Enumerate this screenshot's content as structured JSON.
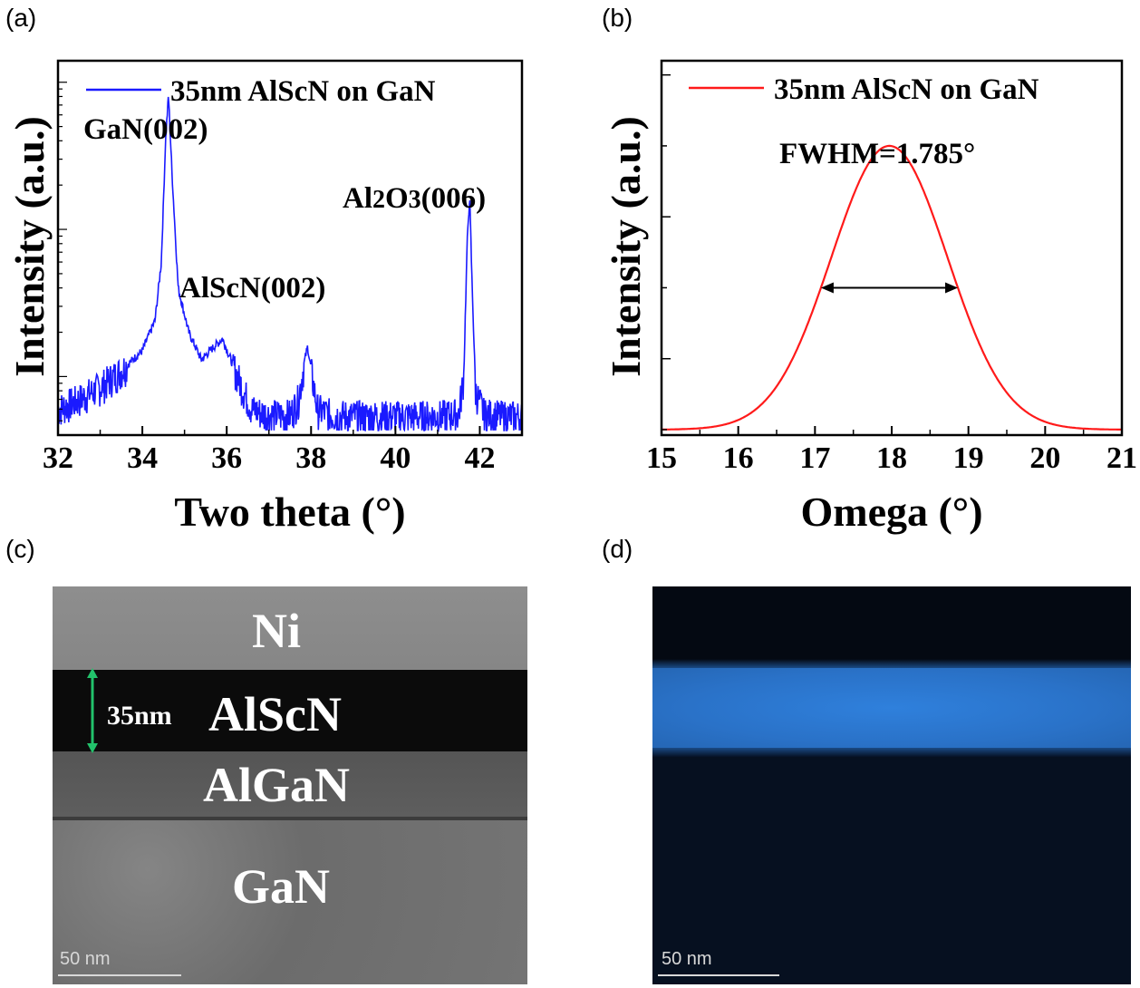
{
  "panels": {
    "a": "(a)",
    "b": "(b)",
    "c": "(c)",
    "d": "(d)"
  },
  "chart_data": [
    {
      "type": "line",
      "title": "",
      "xlabel": "Two theta (°)",
      "ylabel": "Intensity (a.u.)",
      "xlim": [
        32,
        43
      ],
      "xticks": [
        32,
        34,
        36,
        38,
        40,
        42
      ],
      "log_y": true,
      "legend": {
        "entry": "35nm AlScN on GaN",
        "placement": "top",
        "color": "#1a1aff"
      },
      "series": [
        {
          "name": "35nm AlScN on GaN",
          "color": "#1a1aff",
          "x": [
            32.0,
            32.5,
            33.0,
            33.5,
            34.0,
            34.3,
            34.45,
            34.55,
            34.62,
            34.7,
            34.85,
            35.1,
            35.4,
            35.7,
            35.9,
            36.1,
            36.4,
            36.6,
            37.0,
            37.5,
            37.7,
            37.85,
            37.92,
            38.0,
            38.15,
            38.5,
            39.0,
            40.0,
            41.0,
            41.5,
            41.62,
            41.7,
            41.76,
            41.82,
            41.9,
            42.1,
            42.5,
            43.0
          ],
          "y": [
            6,
            7,
            8.5,
            11,
            15,
            24,
            60,
            400,
            820,
            250,
            40,
            20,
            13,
            16,
            18,
            13,
            8,
            6,
            5.5,
            5.5,
            7,
            13,
            16,
            11,
            6,
            5.5,
            5.4,
            5.4,
            5.4,
            5.6,
            10,
            80,
            170,
            40,
            8,
            5.6,
            5.4,
            5.4
          ]
        }
      ],
      "annotations": [
        {
          "text": "GaN(002)",
          "x": 34.6
        },
        {
          "text": "AlScN(002)",
          "x": 35.9
        },
        {
          "text_parts": [
            "Al",
            "2",
            "O",
            "3",
            "(006)"
          ],
          "x": 41.75
        }
      ]
    },
    {
      "type": "line",
      "title": "",
      "xlabel": "Omega (°)",
      "ylabel": "Intensity (a.u.)",
      "xlim": [
        15,
        21
      ],
      "xticks": [
        15,
        16,
        17,
        18,
        19,
        20,
        21
      ],
      "legend": {
        "entry": "35nm AlScN on GaN",
        "placement": "top",
        "color": "#ff1a1a"
      },
      "series": [
        {
          "name": "35nm AlScN on GaN",
          "color": "#ff1a1a",
          "center": 17.97,
          "fwhm": 1.785,
          "peak": 1.0
        }
      ],
      "annotations": [
        {
          "text": "FWHM=1.785°"
        }
      ]
    }
  ],
  "tem": {
    "layers": [
      {
        "name": "Ni",
        "color": "#8b8b8b"
      },
      {
        "name": "AlScN",
        "color": "#0a0a0a"
      },
      {
        "name": "AlGaN",
        "color": "#5a5a5a"
      },
      {
        "name": "GaN",
        "color": "#747474"
      }
    ],
    "thickness_label": "35nm",
    "scale_label": "50 nm"
  },
  "eds": {
    "scale_label": "50 nm",
    "band_color": "#2e7dd8"
  }
}
